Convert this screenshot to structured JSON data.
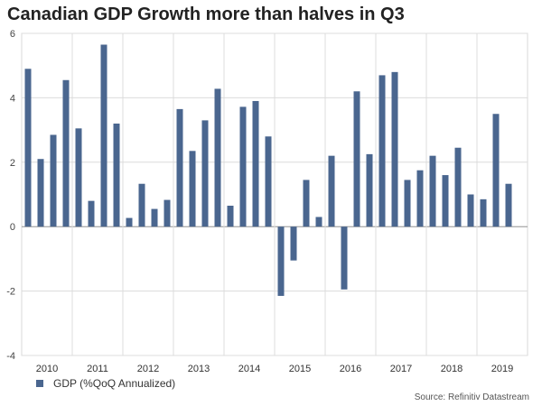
{
  "chart_data": {
    "type": "bar",
    "title": "Canadian GDP Growth more than halves in Q3",
    "series": [
      {
        "name": "GDP (%QoQ Annualized)",
        "color": "#4a668f",
        "values": [
          4.9,
          2.1,
          2.85,
          4.55,
          3.05,
          0.8,
          5.65,
          3.2,
          0.27,
          1.33,
          0.55,
          0.83,
          3.65,
          2.35,
          3.3,
          4.28,
          0.65,
          3.72,
          3.9,
          2.8,
          -2.15,
          -1.05,
          1.45,
          0.3,
          2.2,
          -1.95,
          4.2,
          2.25,
          4.7,
          4.8,
          1.45,
          1.75,
          2.2,
          1.6,
          2.45,
          1.0,
          0.85,
          3.5,
          1.33
        ]
      }
    ],
    "year_labels": [
      "2010",
      "2011",
      "2012",
      "2013",
      "2014",
      "2015",
      "2016",
      "2017",
      "2018",
      "2019"
    ],
    "bars_per_year": 4,
    "ylim": [
      -4,
      6
    ],
    "yticks": [
      -4,
      -2,
      0,
      2,
      4,
      6
    ],
    "xlabel": "",
    "ylabel": "",
    "grid": true,
    "legend": "bottom-left",
    "source": "Source: Refinitiv Datastream"
  }
}
